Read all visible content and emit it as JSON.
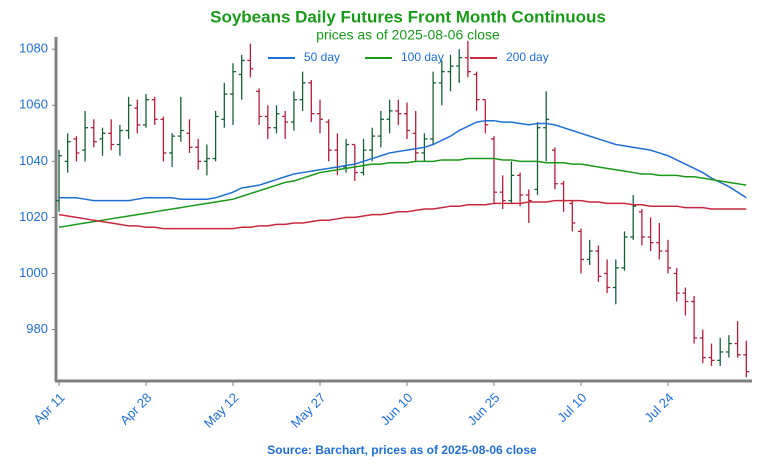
{
  "chart_data": {
    "type": "ohlc",
    "title": "Soybeans Daily Futures Front Month Continuous",
    "subtitle": "prices as of 2025-08-06 close",
    "source": "Source: Barchart, prices as of 2025-08-06 close",
    "categories": [
      "Apr 11",
      null,
      null,
      null,
      null,
      null,
      null,
      null,
      null,
      null,
      "Apr 28",
      null,
      null,
      null,
      null,
      null,
      null,
      null,
      null,
      null,
      "May 12",
      null,
      null,
      null,
      null,
      null,
      null,
      null,
      null,
      null,
      "May 27",
      null,
      null,
      null,
      null,
      null,
      null,
      null,
      null,
      null,
      "Jun 10",
      null,
      null,
      null,
      null,
      null,
      null,
      null,
      null,
      null,
      "Jun 25",
      null,
      null,
      null,
      null,
      null,
      null,
      null,
      null,
      null,
      "Jul 10",
      null,
      null,
      null,
      null,
      null,
      null,
      null,
      null,
      null,
      "Jul 24",
      null,
      null,
      null,
      null,
      null,
      null,
      null,
      null,
      null
    ],
    "open": [
      1026,
      1040,
      1048,
      1044,
      1052,
      1048,
      1050,
      1046,
      1051,
      1059,
      1053,
      1062,
      1055,
      1043,
      1049,
      1050,
      1045,
      1040,
      1041,
      1055,
      1064,
      1071,
      1076,
      1065,
      1056,
      1052,
      1056,
      1054,
      1062,
      1068,
      1057,
      1054,
      1044,
      1038,
      1046,
      1036,
      1044,
      1049,
      1055,
      1058,
      1057,
      1050,
      1043,
      1048,
      1068,
      1072,
      1074,
      1077,
      1071,
      1062,
      1048,
      1029,
      1026,
      1035,
      1028,
      1030,
      1052,
      1044,
      1032,
      1025,
      1015,
      1005,
      1008,
      1000,
      995,
      1002,
      1013,
      1022,
      1013,
      1011,
      1008,
      1000,
      993,
      990,
      977,
      970,
      969,
      972,
      975,
      971
    ],
    "high": [
      1044,
      1050,
      1049,
      1058,
      1055,
      1052,
      1055,
      1053,
      1063,
      1062,
      1064,
      1063,
      1056,
      1050,
      1063,
      1055,
      1048,
      1046,
      1058,
      1068,
      1075,
      1078,
      1082,
      1066,
      1060,
      1060,
      1058,
      1065,
      1072,
      1069,
      1062,
      1055,
      1050,
      1048,
      1046,
      1048,
      1052,
      1058,
      1062,
      1062,
      1061,
      1058,
      1050,
      1072,
      1076,
      1078,
      1080,
      1083,
      1072,
      1062,
      1049,
      1035,
      1040,
      1036,
      1030,
      1054,
      1065,
      1045,
      1033,
      1026,
      1016,
      1012,
      1010,
      1005,
      1005,
      1015,
      1028,
      1023,
      1020,
      1018,
      1012,
      1002,
      995,
      992,
      980,
      975,
      977,
      978,
      983,
      976
    ],
    "low": [
      1022,
      1036,
      1040,
      1040,
      1045,
      1042,
      1044,
      1042,
      1048,
      1050,
      1052,
      1053,
      1040,
      1038,
      1047,
      1043,
      1037,
      1035,
      1040,
      1052,
      1053,
      1062,
      1070,
      1053,
      1048,
      1050,
      1048,
      1051,
      1058,
      1054,
      1050,
      1040,
      1035,
      1036,
      1033,
      1035,
      1040,
      1045,
      1050,
      1053,
      1048,
      1040,
      1040,
      1046,
      1060,
      1065,
      1068,
      1070,
      1058,
      1050,
      1025,
      1023,
      1025,
      1024,
      1018,
      1028,
      1040,
      1030,
      1022,
      1015,
      1000,
      1003,
      997,
      993,
      989,
      1001,
      1012,
      1010,
      1008,
      1005,
      1000,
      990,
      985,
      975,
      968,
      967,
      967,
      970,
      970,
      963
    ],
    "close": [
      1042,
      1047,
      1043,
      1052,
      1047,
      1050,
      1046,
      1051,
      1060,
      1053,
      1062,
      1055,
      1043,
      1049,
      1051,
      1045,
      1040,
      1041,
      1056,
      1064,
      1072,
      1076,
      1073,
      1056,
      1052,
      1057,
      1054,
      1062,
      1068,
      1057,
      1055,
      1044,
      1038,
      1046,
      1036,
      1044,
      1049,
      1055,
      1058,
      1057,
      1051,
      1043,
      1048,
      1068,
      1072,
      1074,
      1077,
      1072,
      1062,
      1053,
      1029,
      1026,
      1035,
      1028,
      1026,
      1052,
      1055,
      1032,
      1026,
      1018,
      1005,
      1008,
      999,
      995,
      1002,
      1013,
      1024,
      1013,
      1011,
      1008,
      1002,
      993,
      990,
      977,
      970,
      969,
      972,
      975,
      971,
      965
    ],
    "up_color": "#17603a",
    "down_color": "#b0203a",
    "series": [
      {
        "name": "50 day",
        "color": "#1f6fd6",
        "values": [
          1027,
          1027,
          1027,
          1026.5,
          1026,
          1026,
          1026,
          1026,
          1026,
          1026.5,
          1027,
          1027,
          1027,
          1027,
          1026.5,
          1026.5,
          1026.5,
          1026.5,
          1027,
          1028,
          1029,
          1030.5,
          1031,
          1031.5,
          1032.5,
          1033.5,
          1034.5,
          1035.5,
          1036,
          1036.5,
          1037,
          1037.5,
          1038,
          1038.5,
          1039,
          1040,
          1041,
          1042,
          1043,
          1043.5,
          1044,
          1044.5,
          1045,
          1046,
          1047.5,
          1049,
          1051,
          1052.5,
          1054,
          1054.5,
          1054.5,
          1054,
          1054,
          1053.5,
          1053,
          1053.5,
          1053.5,
          1053,
          1052,
          1051,
          1050,
          1049,
          1048,
          1047,
          1046,
          1045.5,
          1045,
          1044.5,
          1044,
          1043,
          1042,
          1040.5,
          1039,
          1037.5,
          1036,
          1034,
          1032.5,
          1031,
          1029,
          1027
        ]
      },
      {
        "name": "100 day",
        "color": "#1a9a1a",
        "values": [
          1016.5,
          1017,
          1017.5,
          1018,
          1018.5,
          1019,
          1019.5,
          1020,
          1020.5,
          1021,
          1021.5,
          1022,
          1022.5,
          1023,
          1023.5,
          1024,
          1024.5,
          1025,
          1025.5,
          1026,
          1026.5,
          1027.5,
          1028.5,
          1029.5,
          1030.5,
          1031.5,
          1032.5,
          1033,
          1034,
          1035,
          1036,
          1036.5,
          1037,
          1037.5,
          1038,
          1038.5,
          1039,
          1039,
          1039.5,
          1039.5,
          1039.5,
          1040,
          1040,
          1040,
          1040.5,
          1040.5,
          1040.5,
          1041,
          1041,
          1041,
          1041,
          1040.5,
          1040.5,
          1040,
          1040,
          1040,
          1039.5,
          1039.5,
          1039.5,
          1039,
          1039,
          1038.5,
          1038,
          1037.5,
          1037,
          1036.5,
          1036,
          1035.5,
          1035.5,
          1035,
          1035,
          1035,
          1034.5,
          1034.5,
          1034,
          1033.5,
          1033,
          1032.5,
          1032,
          1031.5
        ]
      },
      {
        "name": "200 day",
        "color": "#c8283e",
        "values": [
          1021,
          1020.5,
          1020,
          1019.5,
          1019,
          1018.5,
          1018,
          1017.5,
          1017,
          1017,
          1016.5,
          1016.5,
          1016,
          1016,
          1016,
          1016,
          1016,
          1016,
          1016,
          1016,
          1016,
          1016.5,
          1016.5,
          1017,
          1017,
          1017.5,
          1017.5,
          1018,
          1018,
          1018.5,
          1019,
          1019,
          1019.5,
          1020,
          1020,
          1020.5,
          1021,
          1021,
          1021.5,
          1022,
          1022,
          1022.5,
          1023,
          1023,
          1023.5,
          1024,
          1024,
          1024.5,
          1024.5,
          1024.5,
          1025,
          1025,
          1025,
          1025,
          1025.5,
          1025.5,
          1025.5,
          1026,
          1026,
          1026,
          1026,
          1025.5,
          1025.5,
          1025,
          1025,
          1025,
          1024.5,
          1024.5,
          1024,
          1024,
          1024,
          1024,
          1023.5,
          1023.5,
          1023.5,
          1023,
          1023,
          1023,
          1023,
          1023
        ]
      }
    ],
    "ylim": [
      962,
      1084
    ],
    "yticks": [
      980,
      1000,
      1020,
      1040,
      1060,
      1080
    ]
  }
}
